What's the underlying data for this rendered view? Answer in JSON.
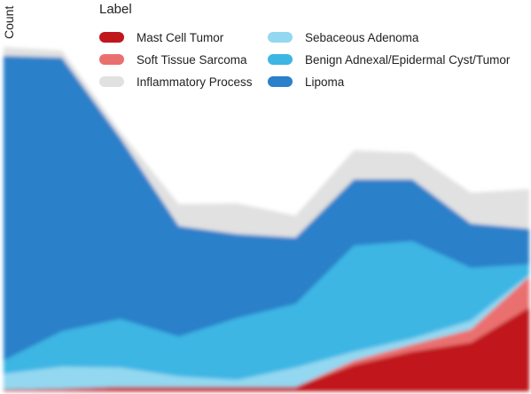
{
  "chart_data": {
    "type": "area",
    "stacked": true,
    "title": "",
    "xlabel": "",
    "ylabel": "Count",
    "legend_title": "Label",
    "legend_position": "top",
    "grid": false,
    "x": [
      1,
      2,
      3,
      4,
      5,
      6,
      7,
      8,
      9,
      10
    ],
    "ylim": [
      0,
      395
    ],
    "series": [
      {
        "name": "Mast Cell Tumor",
        "color": "#c0171d",
        "values": [
          2,
          3,
          5,
          5,
          5,
          5,
          30,
          45,
          55,
          95
        ]
      },
      {
        "name": "Soft Tissue Sarcoma",
        "color": "#ea7070",
        "values": [
          0,
          0,
          0,
          0,
          0,
          0,
          5,
          8,
          15,
          35
        ]
      },
      {
        "name": "Sebaceous Adenoma",
        "color": "#93d8f0",
        "values": [
          18,
          25,
          22,
          12,
          8,
          22,
          10,
          7,
          10,
          2
        ]
      },
      {
        "name": "Benign Adnexal/Epidermal Cyst/Tumor",
        "color": "#3db6e4",
        "values": [
          15,
          40,
          55,
          45,
          70,
          72,
          120,
          110,
          60,
          12
        ]
      },
      {
        "name": "Lipoma",
        "color": "#2a80c9",
        "values": [
          345,
          310,
          205,
          125,
          95,
          75,
          75,
          70,
          50,
          40
        ]
      },
      {
        "name": "Inflammatory Process",
        "color": "#e1e1e1",
        "values": [
          10,
          8,
          7,
          25,
          35,
          25,
          33,
          30,
          35,
          45
        ]
      }
    ]
  },
  "legend": {
    "items": [
      {
        "label": "Mast Cell Tumor",
        "color": "#c0171d"
      },
      {
        "label": "Soft Tissue Sarcoma",
        "color": "#ea7070"
      },
      {
        "label": "Inflammatory Process",
        "color": "#e1e1e1"
      },
      {
        "label": "Sebaceous Adenoma",
        "color": "#93d8f0"
      },
      {
        "label": "Benign Adnexal/Epidermal Cyst/Tumor",
        "color": "#3db6e4"
      },
      {
        "label": "Lipoma",
        "color": "#2a80c9"
      }
    ]
  }
}
